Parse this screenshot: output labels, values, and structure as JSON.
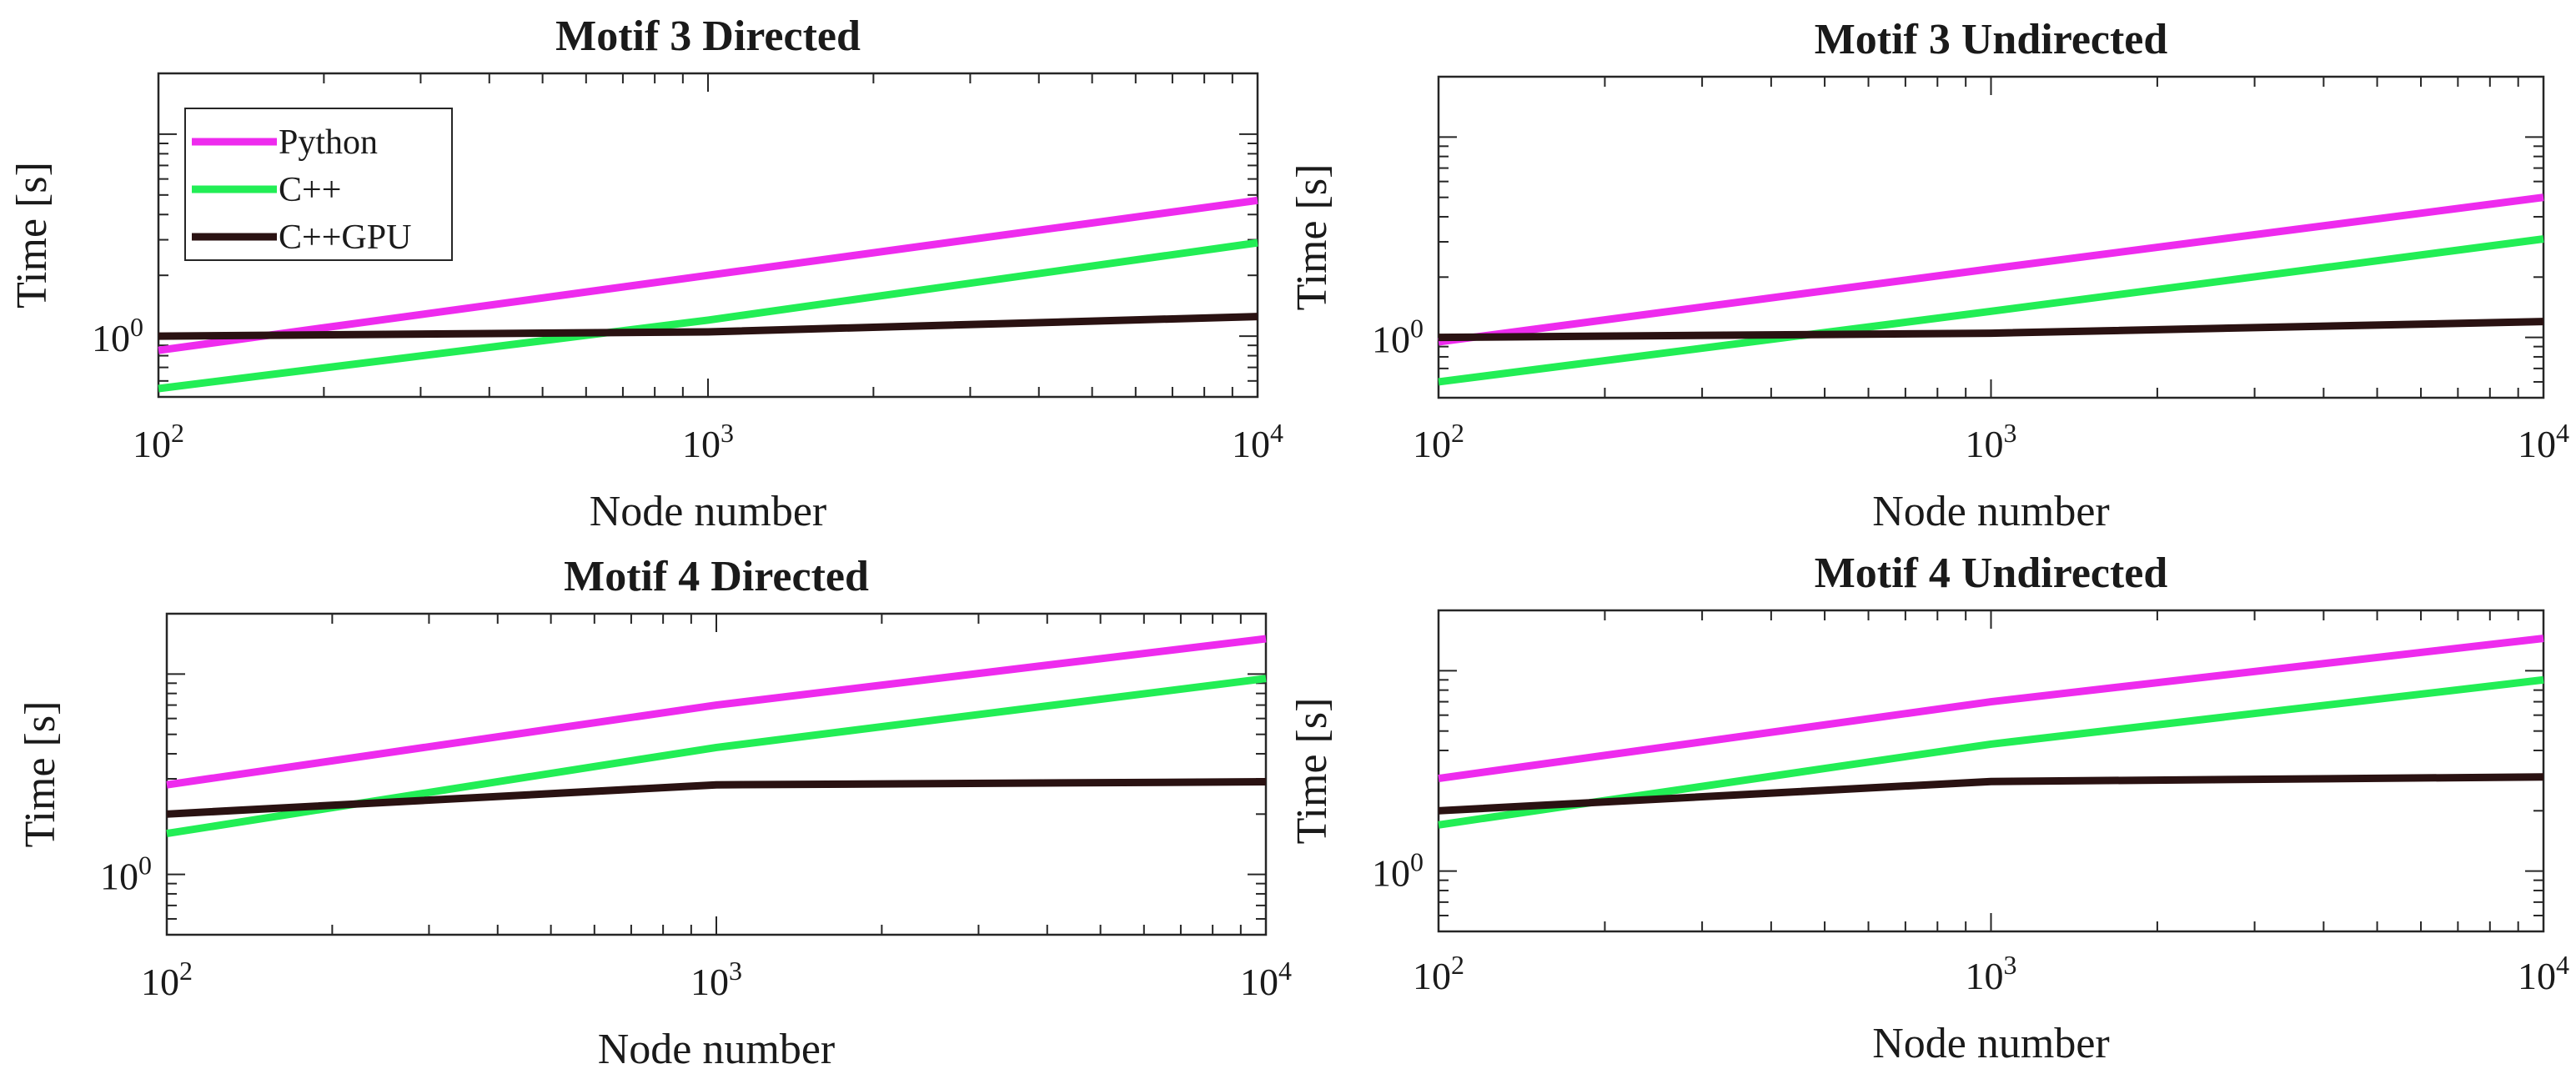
{
  "chart_data": [
    {
      "type": "line",
      "title": "Motif 3 Directed",
      "xlabel": "Node number",
      "ylabel": "Time [s]",
      "xscale": "log",
      "yscale": "log",
      "xlim": [
        100,
        10000
      ],
      "ylim": [
        0.5,
        20
      ],
      "x": [
        100,
        1000,
        10000
      ],
      "x_tick_labels": [
        {
          "base": "10",
          "exp": "2"
        },
        {
          "base": "10",
          "exp": "3"
        },
        {
          "base": "10",
          "exp": "4"
        }
      ],
      "y_tick_labels": [
        {
          "value": 1,
          "base": "10",
          "exp": "0"
        }
      ],
      "legend": {
        "placement": "top-left",
        "entries": [
          "Python",
          "C++",
          "C++GPU"
        ]
      },
      "series": [
        {
          "name": "Python",
          "color": "#ee2bee",
          "values": [
            0.85,
            2.0,
            4.7
          ]
        },
        {
          "name": "C++",
          "color": "#22ee55",
          "values": [
            0.55,
            1.2,
            2.9
          ]
        },
        {
          "name": "C++GPU",
          "color": "#2a1212",
          "values": [
            1.0,
            1.05,
            1.25
          ]
        }
      ]
    },
    {
      "type": "line",
      "title": "Motif 3 Undirected",
      "xlabel": "Node number",
      "ylabel": "Time [s]",
      "xscale": "log",
      "yscale": "log",
      "xlim": [
        100,
        10000
      ],
      "ylim": [
        0.5,
        20
      ],
      "x": [
        100,
        1000,
        10000
      ],
      "x_tick_labels": [
        {
          "base": "10",
          "exp": "2"
        },
        {
          "base": "10",
          "exp": "3"
        },
        {
          "base": "10",
          "exp": "4"
        }
      ],
      "y_tick_labels": [
        {
          "value": 1,
          "base": "10",
          "exp": "0"
        }
      ],
      "series": [
        {
          "name": "Python",
          "color": "#ee2bee",
          "values": [
            0.95,
            2.2,
            5.0
          ]
        },
        {
          "name": "C++",
          "color": "#22ee55",
          "values": [
            0.6,
            1.35,
            3.1
          ]
        },
        {
          "name": "C++GPU",
          "color": "#2a1212",
          "values": [
            1.0,
            1.05,
            1.2
          ]
        }
      ]
    },
    {
      "type": "line",
      "title": "Motif 4 Directed",
      "xlabel": "Node number",
      "ylabel": "Time [s]",
      "xscale": "log",
      "yscale": "log",
      "xlim": [
        100,
        10000
      ],
      "ylim": [
        0.5,
        20
      ],
      "x": [
        100,
        1000,
        10000
      ],
      "x_tick_labels": [
        {
          "base": "10",
          "exp": "2"
        },
        {
          "base": "10",
          "exp": "3"
        },
        {
          "base": "10",
          "exp": "4"
        }
      ],
      "y_tick_labels": [
        {
          "value": 1,
          "base": "10",
          "exp": "0"
        }
      ],
      "series": [
        {
          "name": "Python",
          "color": "#ee2bee",
          "values": [
            2.8,
            7.0,
            15.0
          ]
        },
        {
          "name": "C++",
          "color": "#22ee55",
          "values": [
            1.6,
            4.3,
            9.5
          ]
        },
        {
          "name": "C++GPU",
          "color": "#2a1212",
          "values": [
            2.0,
            2.8,
            2.9
          ]
        }
      ]
    },
    {
      "type": "line",
      "title": "Motif 4 Undirected",
      "xlabel": "Node number",
      "ylabel": "Time [s]",
      "xscale": "log",
      "yscale": "log",
      "xlim": [
        100,
        10000
      ],
      "ylim": [
        0.5,
        20
      ],
      "x": [
        100,
        1000,
        10000
      ],
      "x_tick_labels": [
        {
          "base": "10",
          "exp": "2"
        },
        {
          "base": "10",
          "exp": "3"
        },
        {
          "base": "10",
          "exp": "4"
        }
      ],
      "y_tick_labels": [
        {
          "value": 1,
          "base": "10",
          "exp": "0"
        }
      ],
      "series": [
        {
          "name": "Python",
          "color": "#ee2bee",
          "values": [
            2.9,
            7.0,
            14.5
          ]
        },
        {
          "name": "C++",
          "color": "#22ee55",
          "values": [
            1.7,
            4.3,
            9.0
          ]
        },
        {
          "name": "C++GPU",
          "color": "#2a1212",
          "values": [
            2.0,
            2.8,
            2.95
          ]
        }
      ]
    }
  ]
}
